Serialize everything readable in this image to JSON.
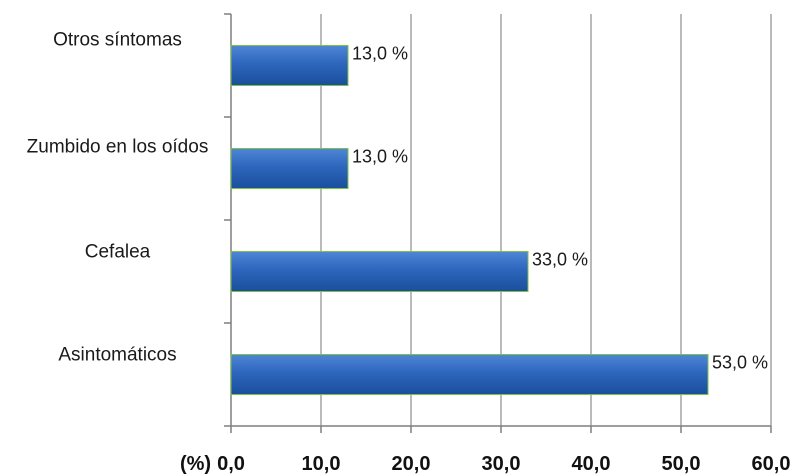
{
  "chart_data": {
    "type": "bar",
    "orientation": "horizontal",
    "categories": [
      "Otros síntomas",
      "Zumbido en los oídos",
      "Cefalea",
      "Asintomáticos"
    ],
    "values": [
      13.0,
      13.0,
      33.0,
      53.0
    ],
    "data_labels": [
      "13,0 %",
      "13,0 %",
      "33,0 %",
      "53,0 %"
    ],
    "x_ticks": [
      0,
      10,
      20,
      30,
      40,
      50,
      60
    ],
    "x_tick_labels": [
      "0,0",
      "10,0",
      "20,0",
      "30,0",
      "40,0",
      "50,0",
      "60,0"
    ],
    "x_unit_label": "(%)",
    "xlim": [
      0,
      60
    ],
    "grid": "vertical",
    "legend": "none",
    "colors": {
      "bar_fill": "#2a62b8",
      "bar_edge": "#7ec242",
      "grid": "#8c8c8c",
      "axis": "#7f7f7f"
    }
  }
}
